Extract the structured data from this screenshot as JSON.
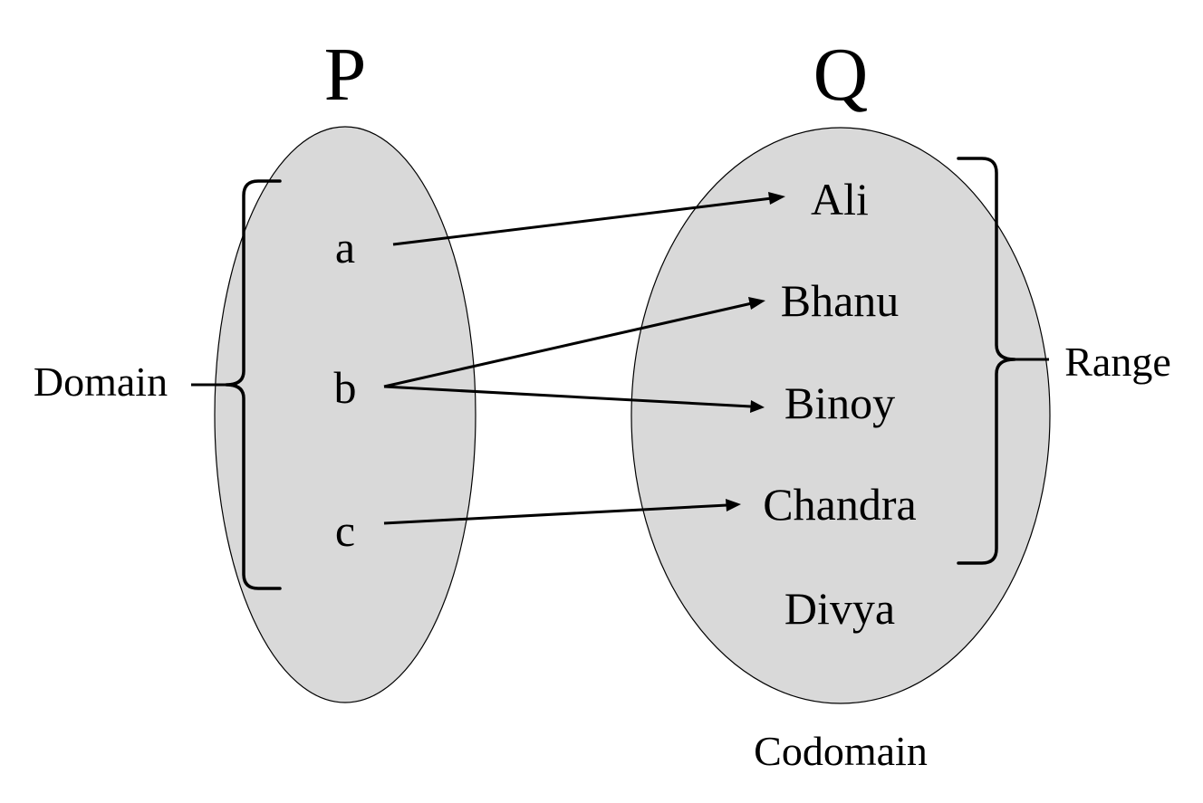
{
  "sets": {
    "P": {
      "title": "P",
      "elements": [
        "a",
        "b",
        "c"
      ]
    },
    "Q": {
      "title": "Q",
      "elements": [
        "Ali",
        "Bhanu",
        "Binoy",
        "Chandra",
        "Divya"
      ]
    }
  },
  "labels": {
    "domain": "Domain",
    "range": "Range",
    "codomain": "Codomain"
  },
  "mappings": [
    {
      "from": "a",
      "to": "Ali"
    },
    {
      "from": "b",
      "to": "Bhanu"
    },
    {
      "from": "b",
      "to": "Binoy"
    },
    {
      "from": "c",
      "to": "Chandra"
    }
  ],
  "colors": {
    "set_fill": "#d9d9d9",
    "stroke": "#000000"
  }
}
